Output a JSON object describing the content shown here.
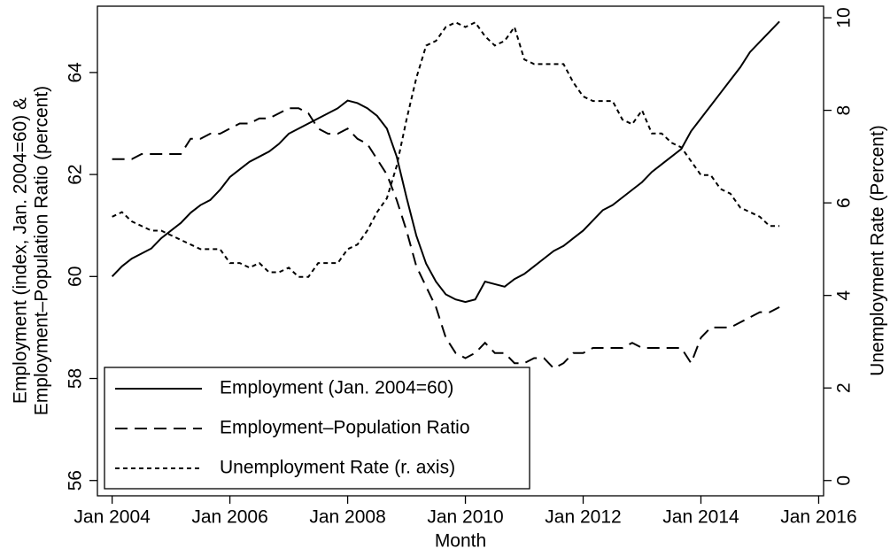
{
  "chart_data": {
    "type": "line",
    "x_label": "Month",
    "y_label": [
      "Employment (index, Jan. 2004=60) &",
      "Employment–Population Ratio (percent)"
    ],
    "y2_label": "Unemployment Rate (Percent)",
    "x": [
      "2004-01",
      "2004-03",
      "2004-05",
      "2004-07",
      "2004-09",
      "2004-11",
      "2005-01",
      "2005-03",
      "2005-05",
      "2005-07",
      "2005-09",
      "2005-11",
      "2006-01",
      "2006-03",
      "2006-05",
      "2006-07",
      "2006-09",
      "2006-11",
      "2007-01",
      "2007-03",
      "2007-05",
      "2007-07",
      "2007-09",
      "2007-11",
      "2008-01",
      "2008-03",
      "2008-05",
      "2008-07",
      "2008-09",
      "2008-11",
      "2009-01",
      "2009-03",
      "2009-05",
      "2009-07",
      "2009-09",
      "2009-11",
      "2010-01",
      "2010-03",
      "2010-05",
      "2010-07",
      "2010-09",
      "2010-11",
      "2011-01",
      "2011-03",
      "2011-05",
      "2011-07",
      "2011-09",
      "2011-11",
      "2012-01",
      "2012-03",
      "2012-05",
      "2012-07",
      "2012-09",
      "2012-11",
      "2013-01",
      "2013-03",
      "2013-05",
      "2013-07",
      "2013-09",
      "2013-11",
      "2014-01",
      "2014-03",
      "2014-05",
      "2014-07",
      "2014-09",
      "2014-11",
      "2015-01",
      "2015-03",
      "2015-05"
    ],
    "series": [
      {
        "name": "Employment (Jan. 2004=60)",
        "color": "#000000",
        "dash": "solid",
        "values": [
          60.0,
          60.2,
          60.35,
          60.45,
          60.55,
          60.75,
          60.9,
          61.05,
          61.25,
          61.4,
          61.5,
          61.7,
          61.95,
          62.1,
          62.25,
          62.35,
          62.45,
          62.6,
          62.8,
          62.9,
          63.0,
          63.1,
          63.2,
          63.3,
          63.45,
          63.4,
          63.3,
          63.15,
          62.9,
          62.35,
          61.55,
          60.8,
          60.25,
          59.9,
          59.65,
          59.55,
          59.5,
          59.55,
          59.9,
          59.85,
          59.8,
          59.95,
          60.05,
          60.2,
          60.35,
          60.5,
          60.6,
          60.75,
          60.9,
          61.1,
          61.3,
          61.4,
          61.55,
          61.7,
          61.85,
          62.05,
          62.2,
          62.35,
          62.5,
          62.85,
          63.1,
          63.35,
          63.6,
          63.85,
          64.1,
          64.4,
          64.6,
          64.8,
          65.0
        ]
      },
      {
        "name": "Employment–Population Ratio",
        "color": "#000000",
        "dash": "dashed",
        "values": [
          62.3,
          62.3,
          62.3,
          62.4,
          62.4,
          62.4,
          62.4,
          62.4,
          62.7,
          62.7,
          62.8,
          62.8,
          62.9,
          63.0,
          63.0,
          63.1,
          63.1,
          63.2,
          63.3,
          63.3,
          63.2,
          62.9,
          62.8,
          62.8,
          62.9,
          62.7,
          62.6,
          62.3,
          62.0,
          61.5,
          60.9,
          60.2,
          59.8,
          59.4,
          58.8,
          58.5,
          58.4,
          58.5,
          58.7,
          58.5,
          58.5,
          58.3,
          58.3,
          58.4,
          58.4,
          58.2,
          58.3,
          58.5,
          58.5,
          58.6,
          58.6,
          58.6,
          58.6,
          58.7,
          58.6,
          58.6,
          58.6,
          58.6,
          58.6,
          58.3,
          58.8,
          59.0,
          59.0,
          59.0,
          59.1,
          59.2,
          59.3,
          59.3,
          59.4
        ]
      },
      {
        "name": "Unemployment Rate (r. axis)",
        "color": "#000000",
        "dash": "dotted",
        "axis": "y2",
        "values": [
          5.7,
          5.8,
          5.6,
          5.5,
          5.4,
          5.4,
          5.3,
          5.2,
          5.1,
          5.0,
          5.0,
          5.0,
          4.7,
          4.7,
          4.6,
          4.7,
          4.5,
          4.5,
          4.6,
          4.4,
          4.4,
          4.7,
          4.7,
          4.7,
          5.0,
          5.1,
          5.4,
          5.8,
          6.1,
          6.8,
          7.8,
          8.7,
          9.4,
          9.5,
          9.8,
          9.9,
          9.8,
          9.9,
          9.6,
          9.4,
          9.5,
          9.8,
          9.1,
          9.0,
          9.0,
          9.0,
          9.0,
          8.6,
          8.3,
          8.2,
          8.2,
          8.2,
          7.8,
          7.7,
          8.0,
          7.5,
          7.5,
          7.3,
          7.2,
          6.9,
          6.6,
          6.6,
          6.3,
          6.2,
          5.9,
          5.8,
          5.7,
          5.5,
          5.5
        ]
      }
    ],
    "xlim": [
      "2003-10",
      "2016-02"
    ],
    "xticks": [
      {
        "value": "2004-01",
        "label": "Jan 2004"
      },
      {
        "value": "2006-01",
        "label": "Jan 2006"
      },
      {
        "value": "2008-01",
        "label": "Jan 2008"
      },
      {
        "value": "2010-01",
        "label": "Jan 2010"
      },
      {
        "value": "2012-01",
        "label": "Jan 2012"
      },
      {
        "value": "2014-01",
        "label": "Jan 2014"
      },
      {
        "value": "2016-01",
        "label": "Jan 2016"
      }
    ],
    "ylim": [
      55.7,
      65.3
    ],
    "yticks": [
      56,
      58,
      60,
      62,
      64
    ],
    "y2lim": [
      -0.33,
      10.25
    ],
    "y2ticks": [
      0,
      2,
      4,
      6,
      8,
      10
    ],
    "legend": "lower-left",
    "grid": false
  }
}
